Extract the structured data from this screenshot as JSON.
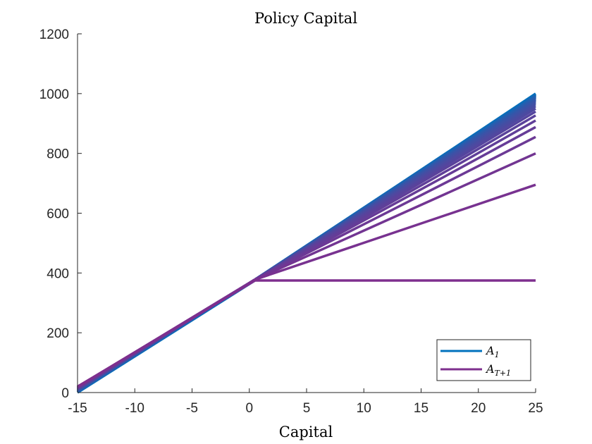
{
  "chart_data": {
    "type": "line",
    "title": "Policy Capital",
    "xlabel": "Capital",
    "ylabel": "",
    "xlim": [
      -15,
      25
    ],
    "ylim": [
      0,
      1200
    ],
    "xticks": [
      -15,
      -10,
      -5,
      0,
      5,
      10,
      15,
      20,
      25
    ],
    "yticks": [
      0,
      200,
      400,
      600,
      800,
      1000,
      1200
    ],
    "grid": false,
    "legend_position": "bottom-right",
    "legend": [
      {
        "label_main": "A",
        "label_sub": "1",
        "color": "#0072BD"
      },
      {
        "label_main": "A",
        "label_sub": "T+1",
        "color": "#7E2F8E"
      }
    ],
    "kink_x": 0.5,
    "x": [
      -15,
      0.5,
      25
    ],
    "series_first": {
      "values": [
        0,
        375,
        1000
      ],
      "color": "#0072BD"
    },
    "series_last": {
      "values": [
        20,
        375,
        375
      ],
      "color": "#7E2F8E"
    },
    "intermediate_end_values": [
      695,
      800,
      855,
      888,
      910,
      927,
      940,
      950,
      958,
      965,
      971,
      976,
      980,
      984,
      987,
      990,
      992,
      994,
      996,
      998
    ],
    "intermediate_start_values": [
      19,
      18,
      17,
      16,
      15,
      14,
      13,
      12,
      11,
      10,
      9,
      8,
      7,
      6,
      5,
      4,
      3,
      2,
      1,
      1
    ],
    "intermediate_kink_value": 378
  }
}
